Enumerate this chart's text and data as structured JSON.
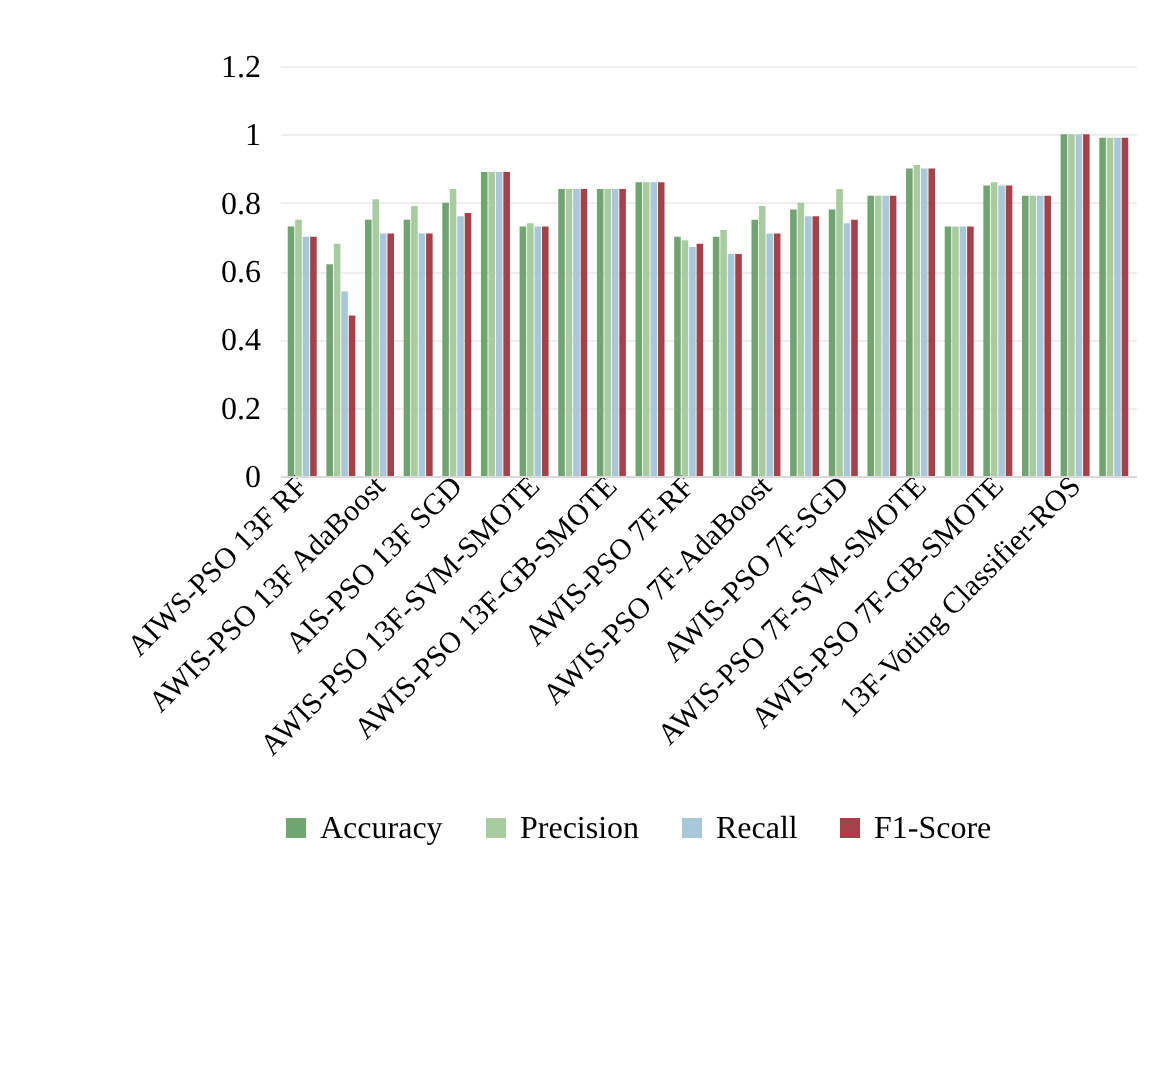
{
  "chart_data": {
    "type": "bar",
    "categories": [
      "AIWS-PSO 13F RF",
      null,
      "AWIS-PSO 13F AdaBoost",
      null,
      "AIS-PSO 13F SGD",
      null,
      "AWIS-PSO 13F-SVM-SMOTE",
      null,
      "AWIS-PSO 13F-GB-SMOTE",
      null,
      "AWIS-PSO 7F-RF",
      null,
      "AWIS-PSO 7F-AdaBoost",
      null,
      "AWIS-PSO 7F-SGD",
      null,
      "AWIS-PSO 7F-SVM-SMOTE",
      null,
      "AWIS-PSO 7F-GB-SMOTE",
      null,
      "13F-Voting Classifier-ROS",
      null
    ],
    "series": [
      {
        "name": "Accuracy",
        "color": "#70a470",
        "values": [
          0.73,
          0.62,
          0.75,
          0.75,
          0.8,
          0.89,
          0.73,
          0.84,
          0.84,
          0.86,
          0.7,
          0.7,
          0.75,
          0.78,
          0.78,
          0.82,
          0.9,
          0.73,
          0.85,
          0.82,
          1.0,
          0.99
        ]
      },
      {
        "name": "Precision",
        "color": "#a8cca0",
        "values": [
          0.75,
          0.68,
          0.81,
          0.79,
          0.84,
          0.89,
          0.74,
          0.84,
          0.84,
          0.86,
          0.69,
          0.72,
          0.79,
          0.8,
          0.84,
          0.82,
          0.91,
          0.73,
          0.86,
          0.82,
          1.0,
          0.99
        ]
      },
      {
        "name": "Recall",
        "color": "#a6c8d8",
        "values": [
          0.7,
          0.54,
          0.71,
          0.71,
          0.76,
          0.89,
          0.73,
          0.84,
          0.84,
          0.86,
          0.67,
          0.65,
          0.71,
          0.76,
          0.74,
          0.82,
          0.9,
          0.73,
          0.85,
          0.82,
          1.0,
          0.99
        ]
      },
      {
        "name": "F1-Score",
        "color": "#a8404a",
        "values": [
          0.7,
          0.47,
          0.71,
          0.71,
          0.77,
          0.89,
          0.73,
          0.84,
          0.84,
          0.86,
          0.68,
          0.65,
          0.71,
          0.76,
          0.75,
          0.82,
          0.9,
          0.73,
          0.85,
          0.82,
          1.0,
          0.99
        ]
      }
    ],
    "ylim": [
      0,
      1.2
    ],
    "yticks": [
      0,
      0.2,
      0.4,
      0.6,
      0.8,
      1,
      1.2
    ],
    "grid": "y",
    "legend": "bottom"
  }
}
